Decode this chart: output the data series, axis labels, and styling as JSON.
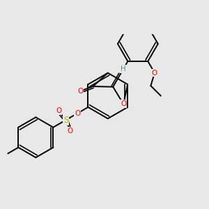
{
  "background_color": "#e8e8e8",
  "bond_color": "#000000",
  "bond_width": 1.4,
  "atom_colors": {
    "O": "#ff0000",
    "S": "#b8b800",
    "H": "#4a9090",
    "C": "#000000"
  },
  "figsize": [
    3.0,
    3.0
  ],
  "dpi": 100,
  "xlim": [
    -1.55,
    1.55
  ],
  "ylim": [
    -1.1,
    1.0
  ]
}
